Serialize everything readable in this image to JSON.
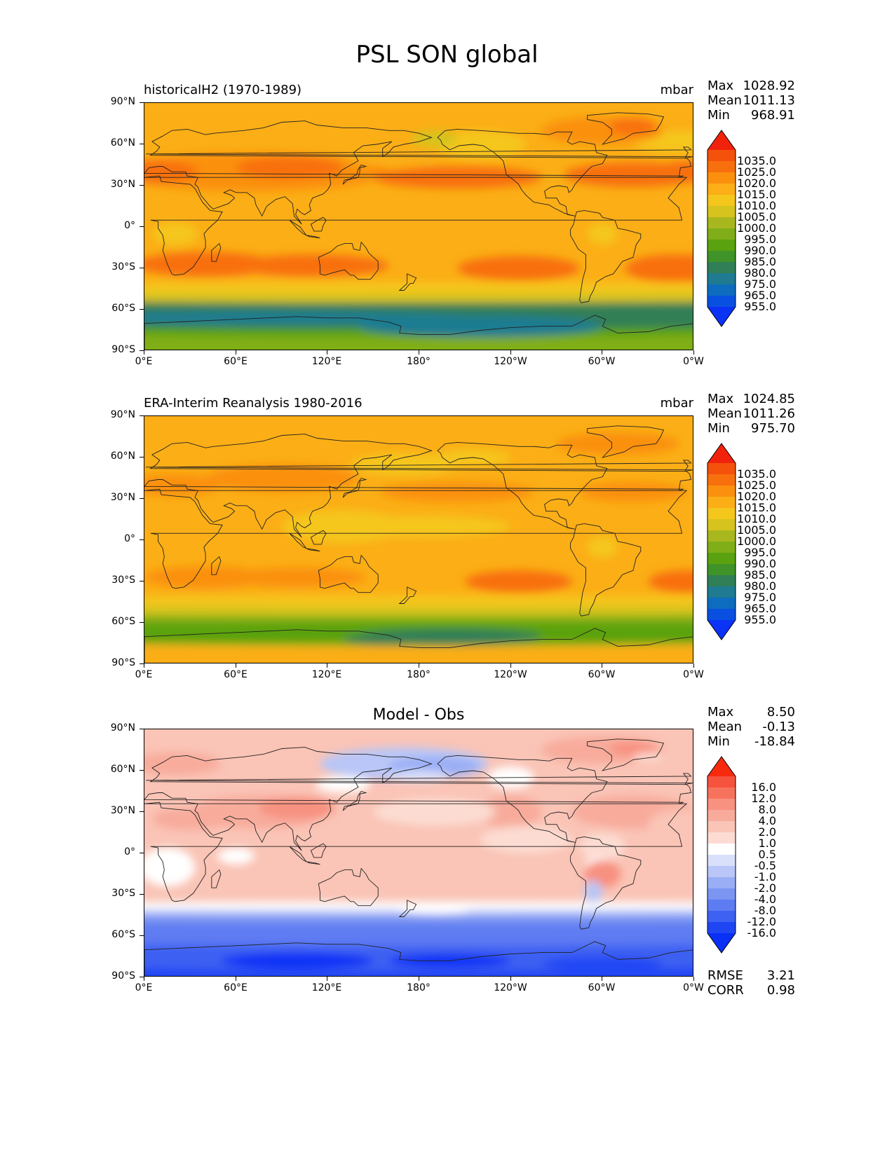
{
  "title": "PSL SON global",
  "lat_ticks": [
    "90°N",
    "60°N",
    "30°N",
    "0°",
    "30°S",
    "60°S",
    "90°S"
  ],
  "lon_ticks": [
    "0°E",
    "60°E",
    "120°E",
    "180°",
    "120°W",
    "60°W",
    "0°W"
  ],
  "panels": [
    {
      "title_left": "historicalH2 (1970-1989)",
      "title_right": "mbar",
      "title_center": "",
      "stats": [
        {
          "k": "Max",
          "v": "1028.92"
        },
        {
          "k": "Mean",
          "v": "1011.13"
        },
        {
          "k": "Min",
          "v": "968.91"
        }
      ],
      "colorbar_labels": [
        "1035.0",
        "1025.0",
        "1020.0",
        "1015.0",
        "1010.0",
        "1005.0",
        "1000.0",
        "995.0",
        "990.0",
        "985.0",
        "980.0",
        "975.0",
        "965.0",
        "955.0"
      ],
      "colorbar_colors": [
        "#f1220b",
        "#f4520c",
        "#f8700e",
        "#fb900f",
        "#fbae16",
        "#f5c61c",
        "#d6c31e",
        "#a9b71f",
        "#80ae18",
        "#5aa20f",
        "#3f9328",
        "#307f57",
        "#1e7b91",
        "#0e6cbf",
        "#0a50e0",
        "#0a33f6"
      ],
      "footer": []
    },
    {
      "title_left": "ERA-Interim Reanalysis 1980-2016",
      "title_right": "mbar",
      "title_center": "",
      "stats": [
        {
          "k": "Max",
          "v": "1024.85"
        },
        {
          "k": "Mean",
          "v": "1011.26"
        },
        {
          "k": "Min",
          "v": "975.70"
        }
      ],
      "colorbar_labels": [
        "1035.0",
        "1025.0",
        "1020.0",
        "1015.0",
        "1010.0",
        "1005.0",
        "1000.0",
        "995.0",
        "990.0",
        "985.0",
        "980.0",
        "975.0",
        "965.0",
        "955.0"
      ],
      "colorbar_colors": [
        "#f1220b",
        "#f4520c",
        "#f8700e",
        "#fb900f",
        "#fbae16",
        "#f5c61c",
        "#d6c31e",
        "#a9b71f",
        "#80ae18",
        "#5aa20f",
        "#3f9328",
        "#307f57",
        "#1e7b91",
        "#0e6cbf",
        "#0a50e0",
        "#0a33f6"
      ],
      "footer": []
    },
    {
      "title_left": "",
      "title_right": "",
      "title_center": "Model - Obs",
      "stats": [
        {
          "k": "Max",
          "v": "8.50"
        },
        {
          "k": "Mean",
          "v": "-0.13"
        },
        {
          "k": "Min",
          "v": "-18.84"
        }
      ],
      "colorbar_labels": [
        "16.0",
        "12.0",
        "8.0",
        "4.0",
        "2.0",
        "1.0",
        "0.5",
        "-0.5",
        "-1.0",
        "-2.0",
        "-4.0",
        "-8.0",
        "-12.0",
        "-16.0"
      ],
      "colorbar_colors": [
        "#f72a0e",
        "#f6533e",
        "#f7725c",
        "#f79180",
        "#f8ab9b",
        "#fac4b6",
        "#fcdcd2",
        "#ffffff",
        "#d9e0fa",
        "#b9c6f7",
        "#9aaef5",
        "#7c95f3",
        "#5e7cf2",
        "#3e61f2",
        "#2046f4",
        "#0a30f6"
      ],
      "footer": [
        {
          "k": "RMSE",
          "v": "3.21"
        },
        {
          "k": "CORR",
          "v": "0.98"
        }
      ]
    }
  ]
}
